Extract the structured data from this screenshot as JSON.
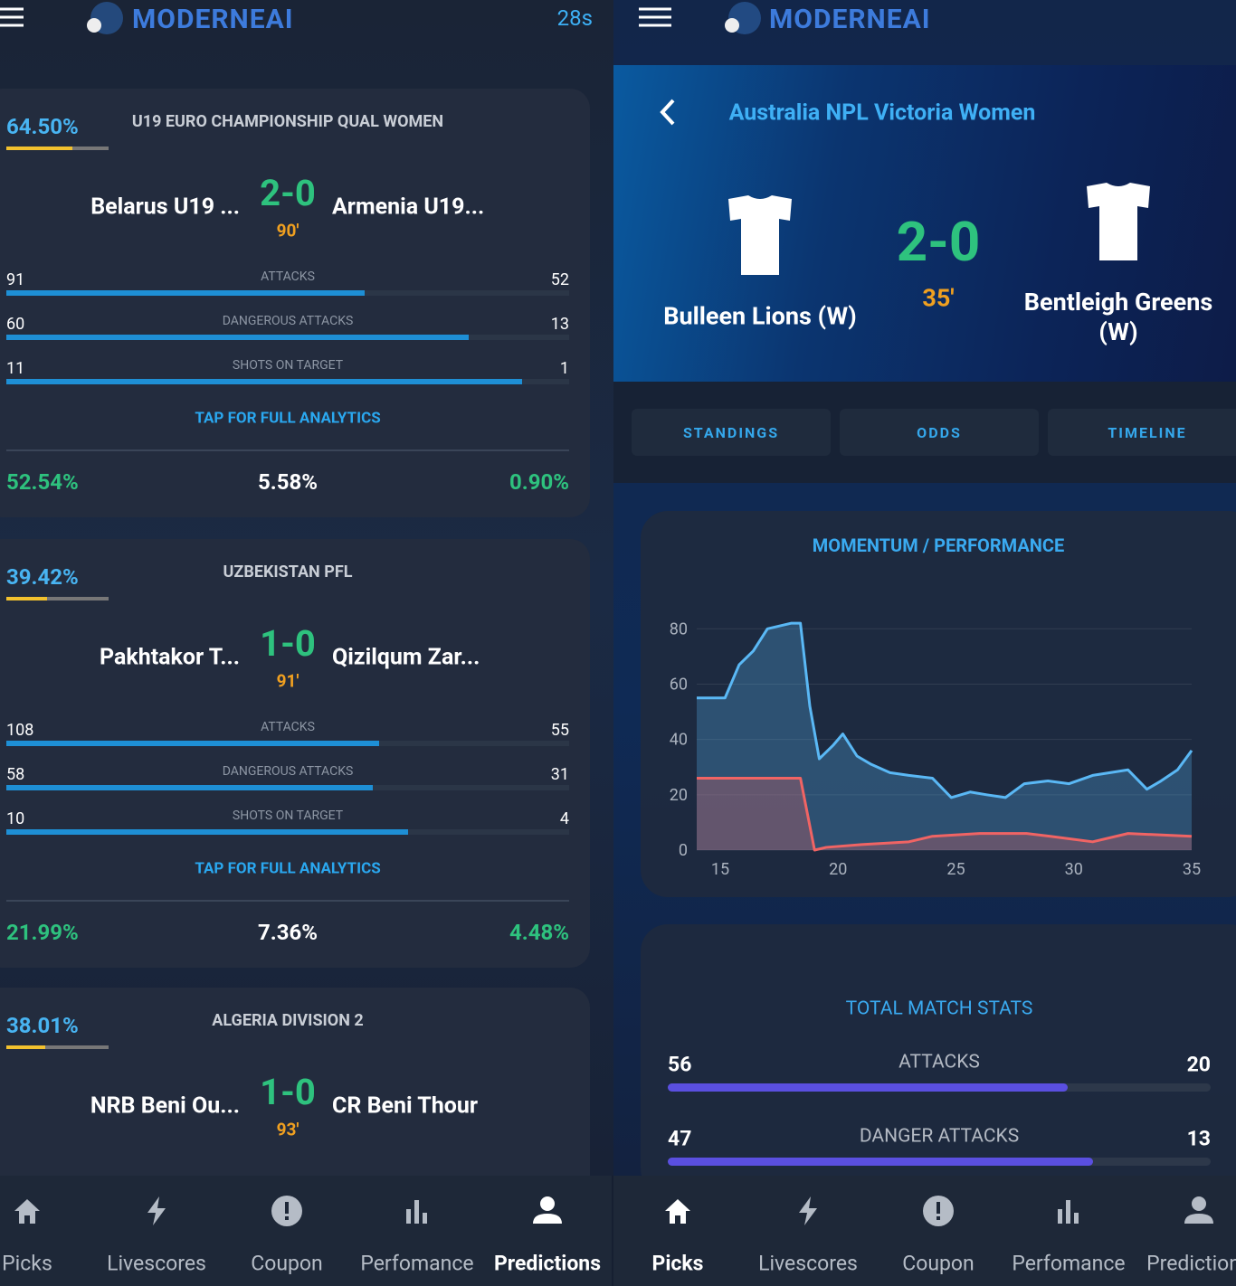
{
  "left": {
    "logo": "MODERNEAI",
    "timer": "28s",
    "matches": [
      {
        "probability": {
          "value": 64.5,
          "label": "64.50%"
        },
        "league": "U19 EURO CHAMPIONSHIP QUAL WOMEN",
        "home": "Belarus U19 ...",
        "score": "2-0",
        "minute": "90'",
        "away": "Armenia U19...",
        "stats": [
          {
            "label": "ATTACKS",
            "home": 91,
            "away": 52
          },
          {
            "label": "DANGEROUS ATTACKS",
            "home": 60,
            "away": 13
          },
          {
            "label": "SHOTS ON TARGET",
            "home": 11,
            "away": 1
          }
        ],
        "action": "TAP FOR FULL ANALYTICS",
        "outcomes": [
          "52.54%",
          "5.58%",
          "0.90%"
        ]
      },
      {
        "probability": {
          "value": 39.42,
          "label": "39.42%"
        },
        "league": "UZBEKISTAN PFL",
        "home": "Pakhtakor T...",
        "score": "1-0",
        "minute": "91'",
        "away": "Qizilqum Zar...",
        "stats": [
          {
            "label": "ATTACKS",
            "home": 108,
            "away": 55
          },
          {
            "label": "DANGEROUS ATTACKS",
            "home": 58,
            "away": 31
          },
          {
            "label": "SHOTS ON TARGET",
            "home": 10,
            "away": 4
          }
        ],
        "action": "TAP FOR FULL ANALYTICS",
        "outcomes": [
          "21.99%",
          "7.36%",
          "4.48%"
        ]
      },
      {
        "probability": {
          "value": 38.01,
          "label": "38.01%"
        },
        "league": "ALGERIA DIVISION 2",
        "home": "NRB Beni Ou...",
        "score": "1-0",
        "minute": "93'",
        "away": "CR Beni Thour"
      }
    ],
    "nav": {
      "items": [
        "Picks",
        "Livescores",
        "Coupon",
        "Perfomance",
        "Predictions"
      ],
      "active": 4
    }
  },
  "right": {
    "logo": "MODERNEAI",
    "league": "Australia NPL Victoria Women",
    "home": "Bulleen Lions (W)",
    "score": "2-0",
    "minute": "35'",
    "away": "Bentleigh Greens (W)",
    "tabs": [
      "STANDINGS",
      "ODDS",
      "TIMELINE"
    ],
    "stats": {
      "title": "TOTAL MATCH STATS",
      "rows": [
        {
          "label": "ATTACKS",
          "home": 56,
          "away": 20
        },
        {
          "label": "DANGER ATTACKS",
          "home": 47,
          "away": 13
        }
      ]
    },
    "nav": {
      "items": [
        "Picks",
        "Livescores",
        "Coupon",
        "Perfomance",
        "Predictions"
      ],
      "active": 0
    }
  },
  "chart_data": {
    "type": "area",
    "title": "MOMENTUM / PERFORMANCE",
    "xlim": [
      14,
      35
    ],
    "ylim": [
      0,
      85
    ],
    "xticks": [
      15,
      20,
      25,
      30,
      35
    ],
    "yticks": [
      0,
      20,
      40,
      60,
      80
    ],
    "grid": true,
    "series": [
      {
        "color": "#5ab8f5",
        "x": [
          14,
          15.2,
          15.8,
          16.4,
          17,
          18,
          18.4,
          18.8,
          19.2,
          19.8,
          20.2,
          20.8,
          21.4,
          22.2,
          23,
          24,
          24.8,
          25.6,
          26.3,
          27.1,
          27.9,
          28.9,
          29.8,
          30.8,
          32.3,
          33.1,
          33.7,
          34.4,
          35
        ],
        "values": [
          55,
          55,
          67,
          72,
          80,
          82,
          82,
          52,
          33,
          38,
          42,
          34,
          31,
          28,
          27,
          26,
          19,
          21,
          20,
          19,
          24,
          25,
          24,
          27,
          29,
          22,
          25,
          29,
          36
        ]
      },
      {
        "color": "#f06464",
        "x": [
          14,
          18.4,
          19,
          19.5,
          21,
          23,
          24,
          26,
          28,
          29,
          30.8,
          32.3,
          35
        ],
        "values": [
          26,
          26,
          0,
          1,
          2,
          3,
          5,
          6,
          6,
          5,
          3,
          6,
          5
        ]
      }
    ]
  }
}
